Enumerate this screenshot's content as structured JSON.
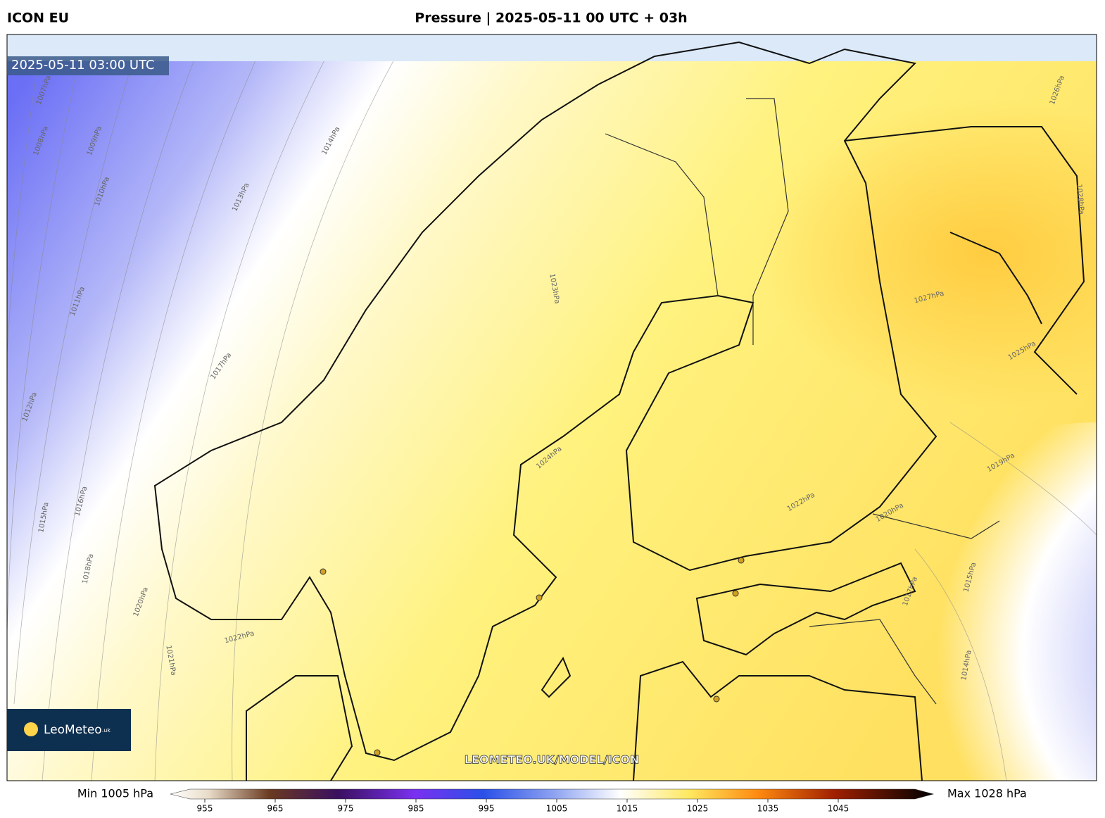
{
  "header": {
    "model": "ICON EU",
    "title": "Pressure | 2025-05-11 00 UTC + 03h"
  },
  "map": {
    "timestamp": "2025-05-11 03:00 UTC",
    "watermark": "LEOMETEO.UK/MODEL/ICON",
    "logo": {
      "name": "LeoMeteo",
      "suffix": ".uk"
    },
    "contour_labels": [
      "1007hPa",
      "1008hPa",
      "1009hPa",
      "1010hPa",
      "1011hPa",
      "1012hPa",
      "1013hPa",
      "1014hPa",
      "1015hPa",
      "1016hPa",
      "1017hPa",
      "1018hPa",
      "1020hPa",
      "1021hPa",
      "1022hPa",
      "1023hPa",
      "1024hPa",
      "1025hPa",
      "1026hPa",
      "1027hPa",
      "1028hPa",
      "1019hPa",
      "1020hPa",
      "1022hPa",
      "1017hPa",
      "1015hPa",
      "1014hPa"
    ]
  },
  "colorbar": {
    "min_label": "Min 1005 hPa",
    "max_label": "Max 1028 hPa",
    "ticks": [
      955,
      965,
      975,
      985,
      995,
      1005,
      1015,
      1025,
      1035,
      1045
    ]
  }
}
